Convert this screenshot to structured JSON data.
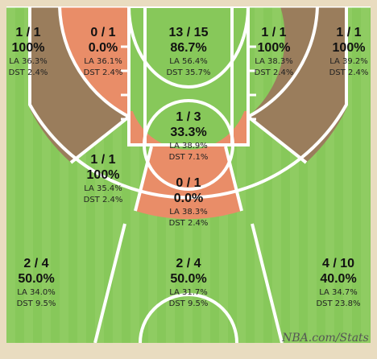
{
  "source_watermark": "NBA.com/Stats",
  "colors": {
    "court_green": "#87c85a",
    "court_board_light": "#9fd372",
    "court_border": "#e9dcc0",
    "zone_hot": "#e98d68",
    "zone_cold": "#9a7d5c",
    "lines": "#ffffff"
  },
  "chart_data": {
    "type": "shot_chart",
    "fields": [
      "fgm_fga",
      "fg_pct",
      "league_avg",
      "distribution"
    ],
    "zones": [
      {
        "id": "left-corner-3",
        "fgm_fga": "1 / 1",
        "fg_pct": "100%",
        "league_avg": "LA 36.3%",
        "distribution": "DST 2.4%",
        "fill": "cold"
      },
      {
        "id": "left-baseline-mid",
        "fgm_fga": "0 / 1",
        "fg_pct": "0.0%",
        "league_avg": "LA 36.1%",
        "distribution": "DST 2.4%",
        "fill": "hot"
      },
      {
        "id": "restricted-area",
        "fgm_fga": "13 / 15",
        "fg_pct": "86.7%",
        "league_avg": "LA 56.4%",
        "distribution": "DST 35.7%",
        "fill": "green"
      },
      {
        "id": "right-baseline-mid",
        "fgm_fga": "1 / 1",
        "fg_pct": "100%",
        "league_avg": "LA 38.3%",
        "distribution": "DST 2.4%",
        "fill": "green"
      },
      {
        "id": "right-corner-3",
        "fgm_fga": "1 / 1",
        "fg_pct": "100%",
        "league_avg": "LA 39.2%",
        "distribution": "DST 2.4%",
        "fill": "cold"
      },
      {
        "id": "paint-non-ra",
        "fgm_fga": "1 / 3",
        "fg_pct": "33.3%",
        "league_avg": "LA 38.9%",
        "distribution": "DST 7.1%",
        "fill": "hot"
      },
      {
        "id": "left-wing-mid",
        "fgm_fga": "1 / 1",
        "fg_pct": "100%",
        "league_avg": "LA 35.4%",
        "distribution": "DST 2.4%",
        "fill": "green"
      },
      {
        "id": "center-mid",
        "fgm_fga": "0 / 1",
        "fg_pct": "0.0%",
        "league_avg": "LA 38.3%",
        "distribution": "DST 2.4%",
        "fill": "hot"
      },
      {
        "id": "left-wing-3",
        "fgm_fga": "2 / 4",
        "fg_pct": "50.0%",
        "league_avg": "LA 34.0%",
        "distribution": "DST 9.5%",
        "fill": "green"
      },
      {
        "id": "center-3",
        "fgm_fga": "2 / 4",
        "fg_pct": "50.0%",
        "league_avg": "LA 31.7%",
        "distribution": "DST 9.5%",
        "fill": "green"
      },
      {
        "id": "right-wing-3",
        "fgm_fga": "4 / 10",
        "fg_pct": "40.0%",
        "league_avg": "LA 34.7%",
        "distribution": "DST 23.8%",
        "fill": "green"
      }
    ]
  }
}
